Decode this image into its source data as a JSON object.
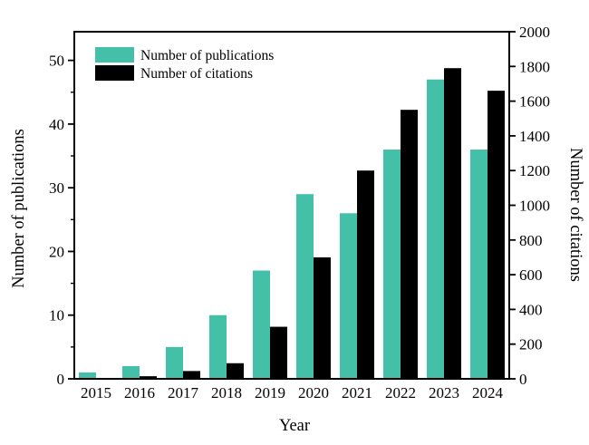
{
  "chart_data": {
    "type": "bar",
    "title": "",
    "categories": [
      "2015",
      "2016",
      "2017",
      "2018",
      "2019",
      "2020",
      "2021",
      "2022",
      "2023",
      "2024"
    ],
    "series": [
      {
        "name": "Number of publications",
        "axis": "left",
        "color": "#45C0A8",
        "values": [
          1,
          2,
          5,
          10,
          17,
          29,
          26,
          36,
          47,
          36
        ]
      },
      {
        "name": "Number of citations",
        "axis": "right",
        "color": "#000000",
        "values": [
          5,
          15,
          45,
          90,
          300,
          700,
          1200,
          1550,
          1790,
          1660
        ]
      }
    ],
    "xlabel": "Year",
    "ylabel_left": "Number of publications",
    "ylabel_right": "Number of citations",
    "left_axis": {
      "min": 0,
      "max": 54.5,
      "ticks": [
        0,
        10,
        20,
        30,
        40,
        50
      ],
      "minor_ticks": [
        5,
        15,
        25,
        35,
        45
      ]
    },
    "right_axis": {
      "min": 0,
      "max": 2000,
      "ticks": [
        0,
        200,
        400,
        600,
        800,
        1000,
        1200,
        1400,
        1600,
        1800,
        2000
      ]
    },
    "legend_position": "top-left",
    "grid": false
  },
  "colors": {
    "publications": "#45C0A8",
    "citations": "#000000",
    "axis": "#000000",
    "background": "#FFFFFF"
  }
}
